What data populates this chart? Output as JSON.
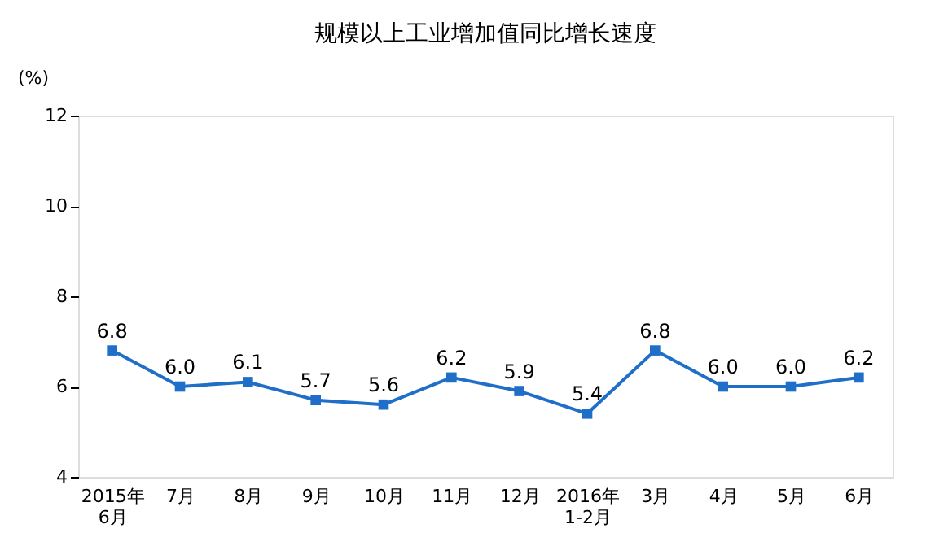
{
  "chart_data": {
    "type": "line",
    "title": "规模以上工业增加值同比增长速度",
    "ylabel": "(%)",
    "categories": [
      "2015年\n6月",
      "7月",
      "8月",
      "9月",
      "10月",
      "11月",
      "12月",
      "2016年\n1-2月",
      "3月",
      "4月",
      "5月",
      "6月"
    ],
    "values": [
      6.8,
      6.0,
      6.1,
      5.7,
      5.6,
      6.2,
      5.9,
      5.4,
      6.8,
      6.0,
      6.0,
      6.2
    ],
    "color": "#1f6fc8",
    "ylim": [
      4,
      12
    ],
    "yticks": [
      4,
      6,
      8,
      10,
      12
    ],
    "marker": "square",
    "value_labels": [
      "6.8",
      "6.0",
      "6.1",
      "5.7",
      "5.6",
      "6.2",
      "5.9",
      "5.4",
      "6.8",
      "6.0",
      "6.0",
      "6.2"
    ]
  }
}
